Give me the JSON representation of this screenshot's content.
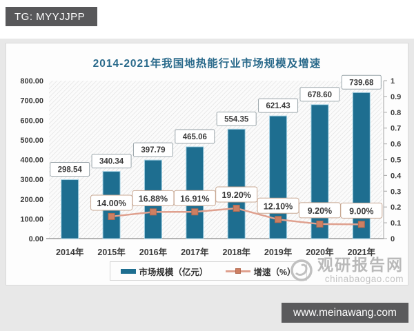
{
  "badge": {
    "text": "TG: MYYJJPP"
  },
  "footer": {
    "site": "www.meinawang.com"
  },
  "watermark": {
    "name": "观研报告网",
    "domain": "chinabaogao.com"
  },
  "colors": {
    "bar": "#1e6e90",
    "bar_edge": "#a5d2e4",
    "line": "#dfa08e",
    "marker": "#cd7f62",
    "marker_edge": "#b46a50",
    "title": "#2a6a8b",
    "label_text": "#3a3a3a",
    "value_box_border": "#9aa5aa",
    "pct_box_border": "#c8a893",
    "axis_line": "#9c9c9c",
    "right_axis_line": "#b3b3b3"
  },
  "chart_data": {
    "type": "bar",
    "title": "2014-2021年我国地热能行业市场规模及增速",
    "categories": [
      "2014年",
      "2015年",
      "2016年",
      "2017年",
      "2018年",
      "2019年",
      "2020年",
      "2021年"
    ],
    "series": [
      {
        "name": "市场规模（亿元）",
        "type": "bar",
        "axis": "left",
        "values": [
          298.54,
          340.34,
          397.79,
          465.06,
          554.35,
          621.43,
          678.6,
          739.68
        ],
        "labels": [
          "298.54",
          "340.34",
          "397.79",
          "465.06",
          "554.35",
          "621.43",
          "678.60",
          "739.68"
        ]
      },
      {
        "name": "增速（%）",
        "type": "line",
        "axis": "right",
        "values": [
          null,
          0.14,
          0.1688,
          0.1691,
          0.192,
          0.121,
          0.092,
          0.09
        ],
        "labels": [
          null,
          "14.00%",
          "16.88%",
          "16.91%",
          "19.20%",
          "12.10%",
          "9.20%",
          "9.00%"
        ]
      }
    ],
    "left_axis": {
      "min": 0,
      "max": 800,
      "step": 100,
      "ticks": [
        "800.00",
        "700.00",
        "600.00",
        "500.00",
        "400.00",
        "300.00",
        "200.00",
        "100.00",
        "0.00"
      ]
    },
    "right_axis": {
      "min": 0,
      "max": 1,
      "step": 0.1,
      "ticks": [
        "1",
        "0.9",
        "0.8",
        "0.7",
        "0.6",
        "0.5",
        "0.4",
        "0.3",
        "0.2",
        "0.1",
        "0"
      ]
    },
    "legend_position": "bottom",
    "grid": false,
    "plot_background": "diagonal-hatch"
  }
}
